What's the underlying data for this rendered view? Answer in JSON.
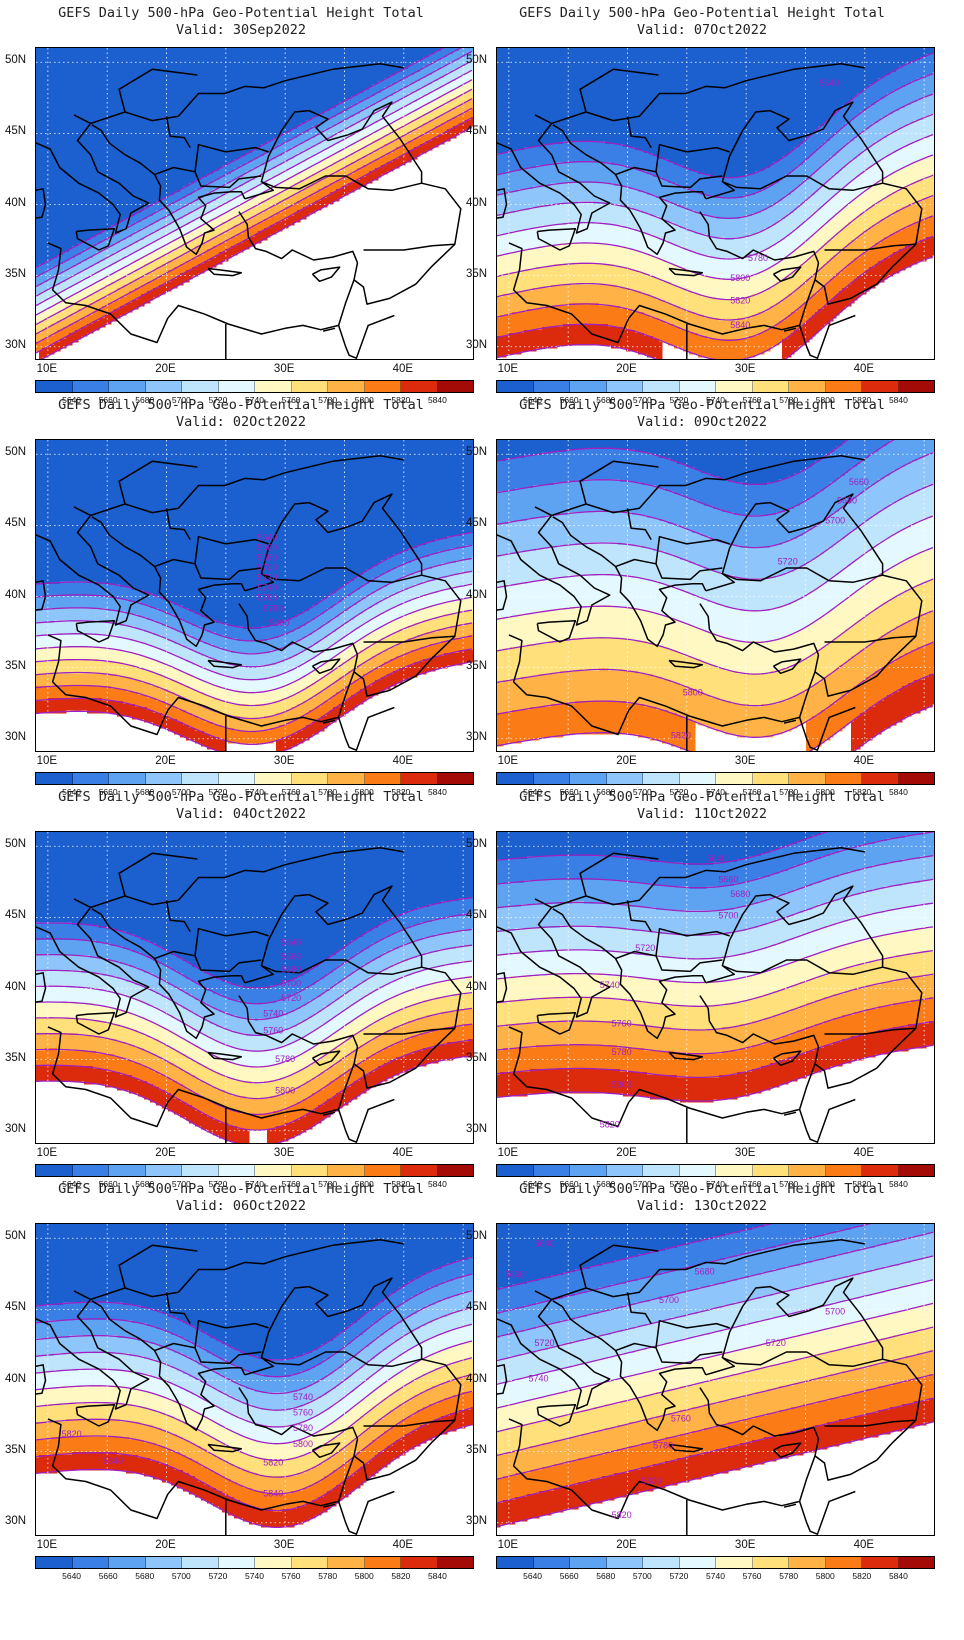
{
  "figure": {
    "title_prefix": "GEFS Daily 500-hPa Geo-Potential Height Total",
    "lat_labels": [
      "50N",
      "45N",
      "40N",
      "35N",
      "30N"
    ],
    "lon_labels": [
      "10E",
      "20E",
      "30E",
      "40E"
    ],
    "colorbar_labels": [
      "5640",
      "5660",
      "5680",
      "5700",
      "5720",
      "5740",
      "5760",
      "5780",
      "5800",
      "5820",
      "5840"
    ],
    "colors": {
      "level_fills": [
        "#1c5fce",
        "#3a7fe6",
        "#5ea2f2",
        "#8ec5fa",
        "#bfe5fd",
        "#e4f8ff",
        "#fff8c2",
        "#ffe07a",
        "#ffb347",
        "#fb7b17",
        "#dc2a0d",
        "#a50b06"
      ],
      "contour_line": "#a020c0",
      "coast_line": "#000000"
    }
  },
  "chart_data": [
    {
      "type": "map",
      "title": "GEFS Daily 500-hPa Geo-Potential Height Total",
      "valid_label": "Valid: 30Sep2022",
      "region": {
        "lon_range": [
          9,
          46
        ],
        "lat_range": [
          29,
          51
        ]
      },
      "field": {
        "base": 5750,
        "southward_gradient_per_deg": 30,
        "trough_amp": 0,
        "trough_lon": 30,
        "ridge_tilt_per_deg_lon": 0.45
      },
      "contour_labels": []
    },
    {
      "type": "map",
      "title": "GEFS Daily 500-hPa Geo-Potential Height Total",
      "valid_label": "Valid: 07Oct2022",
      "region": {
        "lon_range": [
          9,
          46
        ],
        "lat_range": [
          29,
          51
        ]
      },
      "field": {
        "base": 5740,
        "southward_gradient_per_deg": 14,
        "trough_amp": 80,
        "trough_lon": 30,
        "ridge_tilt_per_deg_lon": 0.2
      },
      "contour_labels": [
        {
          "text": "5640",
          "lon": 37,
          "lat": 48.5
        },
        {
          "text": "5780",
          "lon": 31,
          "lat": 36.2
        },
        {
          "text": "5800",
          "lon": 29.5,
          "lat": 34.8
        },
        {
          "text": "5820",
          "lon": 29.5,
          "lat": 33.2
        },
        {
          "text": "5840",
          "lon": 29.5,
          "lat": 31.5
        }
      ]
    },
    {
      "type": "map",
      "title": "GEFS Daily 500-hPa Geo-Potential Height Total",
      "valid_label": "Valid: 02Oct2022",
      "region": {
        "lon_range": [
          9,
          46
        ],
        "lat_range": [
          29,
          51
        ]
      },
      "field": {
        "base": 5700,
        "southward_gradient_per_deg": 22,
        "trough_amp": 110,
        "trough_lon": 28,
        "ridge_tilt_per_deg_lon": 0.1
      },
      "contour_labels": [
        {
          "text": "5640",
          "lon": 28.5,
          "lat": 44.1
        },
        {
          "text": "5660",
          "lon": 28.5,
          "lat": 43.4
        },
        {
          "text": "5680",
          "lon": 28.5,
          "lat": 42.7
        },
        {
          "text": "5700",
          "lon": 28.5,
          "lat": 42.0
        },
        {
          "text": "5720",
          "lon": 28.5,
          "lat": 41.3
        },
        {
          "text": "5740",
          "lon": 28.5,
          "lat": 40.6
        },
        {
          "text": "5760",
          "lon": 28.5,
          "lat": 39.9
        },
        {
          "text": "5780",
          "lon": 29.0,
          "lat": 39.1
        },
        {
          "text": "5800",
          "lon": 29.5,
          "lat": 38.1
        }
      ]
    },
    {
      "type": "map",
      "title": "GEFS Daily 500-hPa Geo-Potential Height Total",
      "valid_label": "Valid: 09Oct2022",
      "region": {
        "lon_range": [
          9,
          46
        ],
        "lat_range": [
          29,
          51
        ]
      },
      "field": {
        "base": 5750,
        "southward_gradient_per_deg": 9,
        "trough_amp": 45,
        "trough_lon": 32,
        "ridge_tilt_per_deg_lon": 0.15
      },
      "contour_labels": [
        {
          "text": "5660",
          "lon": 39.5,
          "lat": 48.0
        },
        {
          "text": "5680",
          "lon": 38.5,
          "lat": 46.7
        },
        {
          "text": "5700",
          "lon": 37.5,
          "lat": 45.3
        },
        {
          "text": "5720",
          "lon": 33.5,
          "lat": 42.4
        },
        {
          "text": "5800",
          "lon": 25.5,
          "lat": 33.2
        },
        {
          "text": "5820",
          "lon": 24.5,
          "lat": 30.2
        }
      ]
    },
    {
      "type": "map",
      "title": "GEFS Daily 500-hPa Geo-Potential Height Total",
      "valid_label": "Valid: 04Oct2022",
      "region": {
        "lon_range": [
          9,
          46
        ],
        "lat_range": [
          29,
          51
        ]
      },
      "field": {
        "base": 5740,
        "southward_gradient_per_deg": 18,
        "trough_amp": 100,
        "trough_lon": 28,
        "ridge_tilt_per_deg_lon": 0.05
      },
      "contour_labels": [
        {
          "text": "5640",
          "lon": 30.5,
          "lat": 43.2
        },
        {
          "text": "5660",
          "lon": 30.5,
          "lat": 42.2
        },
        {
          "text": "5680",
          "lon": 30.5,
          "lat": 41.3
        },
        {
          "text": "5700",
          "lon": 30.5,
          "lat": 40.3
        },
        {
          "text": "5720",
          "lon": 30.5,
          "lat": 39.3
        },
        {
          "text": "5740",
          "lon": 29.0,
          "lat": 38.2
        },
        {
          "text": "5760",
          "lon": 29.0,
          "lat": 37.0
        },
        {
          "text": "5780",
          "lon": 30.0,
          "lat": 35.0
        },
        {
          "text": "5800",
          "lon": 30.0,
          "lat": 32.8
        }
      ]
    },
    {
      "type": "map",
      "title": "GEFS Daily 500-hPa Geo-Potential Height Total",
      "valid_label": "Valid: 11Oct2022",
      "region": {
        "lon_range": [
          9,
          46
        ],
        "lat_range": [
          29,
          51
        ]
      },
      "field": {
        "base": 5770,
        "southward_gradient_per_deg": 12,
        "trough_amp": 25,
        "trough_lon": 28,
        "ridge_tilt_per_deg_lon": 0.1
      },
      "contour_labels": [
        {
          "text": "5640",
          "lon": 27.5,
          "lat": 49.1
        },
        {
          "text": "5660",
          "lon": 28.5,
          "lat": 47.6
        },
        {
          "text": "5680",
          "lon": 29.5,
          "lat": 46.6
        },
        {
          "text": "5700",
          "lon": 28.5,
          "lat": 45.1
        },
        {
          "text": "5720",
          "lon": 21.5,
          "lat": 42.8
        },
        {
          "text": "5740",
          "lon": 18.5,
          "lat": 40.2
        },
        {
          "text": "5760",
          "lon": 19.5,
          "lat": 37.5
        },
        {
          "text": "5780",
          "lon": 19.5,
          "lat": 35.5
        },
        {
          "text": "5800",
          "lon": 19.5,
          "lat": 33.2
        },
        {
          "text": "5820",
          "lon": 18.5,
          "lat": 30.4
        }
      ]
    },
    {
      "type": "map",
      "title": "GEFS Daily 500-hPa Geo-Potential Height Total",
      "valid_label": "Valid: 06Oct2022",
      "region": {
        "lon_range": [
          9,
          46
        ],
        "lat_range": [
          29,
          51
        ]
      },
      "field": {
        "base": 5760,
        "southward_gradient_per_deg": 17,
        "trough_amp": 100,
        "trough_lon": 30,
        "ridge_tilt_per_deg_lon": 0.1
      },
      "contour_labels": [
        {
          "text": "5740",
          "lon": 31.5,
          "lat": 38.8
        },
        {
          "text": "5760",
          "lon": 31.5,
          "lat": 37.7
        },
        {
          "text": "5780",
          "lon": 31.5,
          "lat": 36.6
        },
        {
          "text": "5800",
          "lon": 31.5,
          "lat": 35.5
        },
        {
          "text": "5820",
          "lon": 29.0,
          "lat": 34.2
        },
        {
          "text": "5840",
          "lon": 29.0,
          "lat": 32.0
        },
        {
          "text": "5820",
          "lon": 12.0,
          "lat": 36.2
        },
        {
          "text": "5840",
          "lon": 15.5,
          "lat": 34.3
        }
      ]
    },
    {
      "type": "map",
      "title": "GEFS Daily 500-hPa Geo-Potential Height Total",
      "valid_label": "Valid: 13Oct2022",
      "region": {
        "lon_range": [
          9,
          46
        ],
        "lat_range": [
          29,
          51
        ]
      },
      "field": {
        "base": 5760,
        "southward_gradient_per_deg": 12,
        "trough_amp": 0,
        "trough_lon": 30,
        "ridge_tilt_per_deg_lon": 0.2
      },
      "contour_labels": [
        {
          "text": "5640",
          "lon": 13.0,
          "lat": 49.6
        },
        {
          "text": "5660",
          "lon": 10.5,
          "lat": 47.4
        },
        {
          "text": "5680",
          "lon": 26.5,
          "lat": 47.6
        },
        {
          "text": "5700",
          "lon": 23.5,
          "lat": 45.6
        },
        {
          "text": "5700",
          "lon": 37.5,
          "lat": 44.8
        },
        {
          "text": "5720",
          "lon": 13.0,
          "lat": 42.6
        },
        {
          "text": "5720",
          "lon": 32.5,
          "lat": 42.6
        },
        {
          "text": "5740",
          "lon": 12.5,
          "lat": 40.1
        },
        {
          "text": "5760",
          "lon": 24.5,
          "lat": 37.3
        },
        {
          "text": "5780",
          "lon": 23.0,
          "lat": 35.4
        },
        {
          "text": "5800",
          "lon": 22.0,
          "lat": 32.9
        },
        {
          "text": "5820",
          "lon": 19.5,
          "lat": 30.5
        }
      ]
    }
  ]
}
